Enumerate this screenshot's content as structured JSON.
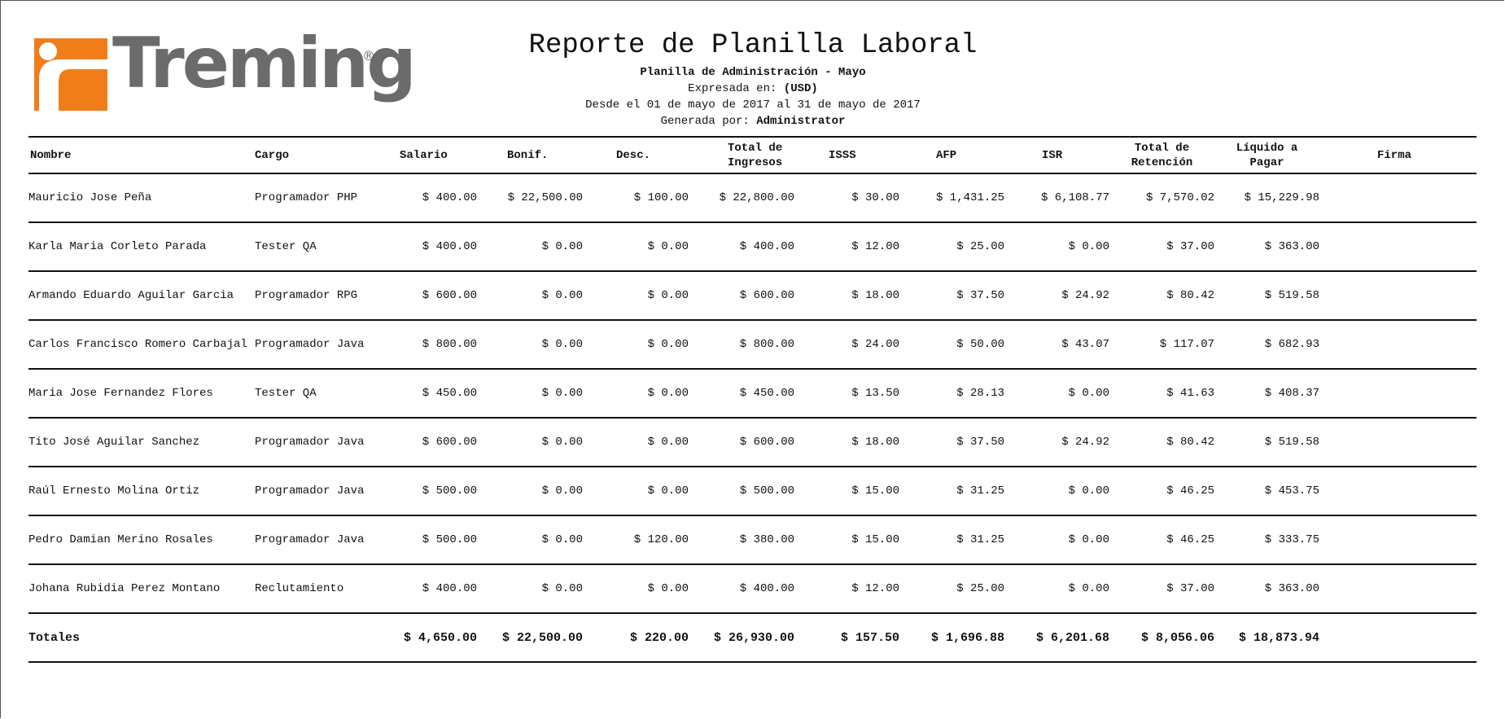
{
  "logo": {
    "word": "Treming",
    "reg": "®",
    "brand_orange": "#f07d1a",
    "brand_gray": "#6b6b6b"
  },
  "report": {
    "title": "Reporte de Planilla Laboral",
    "subtitle": "Planilla de Administración - Mayo",
    "currency_label": "Expresada en:",
    "currency_value": "(USD)",
    "date_range": "Desde el 01 de mayo de 2017 al 31 de mayo de 2017",
    "generated_label": "Generada por:",
    "generated_value": "Administrator"
  },
  "table": {
    "headers": {
      "nombre": "Nombre",
      "cargo": "Cargo",
      "salario": "Salario",
      "bonif": "Bonif.",
      "desc": "Desc.",
      "total_ingresos_1": "Total de",
      "total_ingresos_2": "Ingresos",
      "isss": "ISSS",
      "afp": "AFP",
      "isr": "ISR",
      "total_retencion_1": "Total de",
      "total_retencion_2": "Retención",
      "liquido_1": "Líquido a",
      "liquido_2": "Pagar",
      "firma": "Firma"
    },
    "rows": [
      {
        "nombre": "Mauricio Jose Peña",
        "cargo": "Programador PHP",
        "salario": "$ 400.00",
        "bonif": "$ 22,500.00",
        "desc": "$ 100.00",
        "ingresos": "$ 22,800.00",
        "isss": "$ 30.00",
        "afp": "$ 1,431.25",
        "isr": "$ 6,108.77",
        "retencion": "$ 7,570.02",
        "liquido": "$ 15,229.98"
      },
      {
        "nombre": "Karla Maria Corleto Parada",
        "cargo": "Tester QA",
        "salario": "$ 400.00",
        "bonif": "$ 0.00",
        "desc": "$ 0.00",
        "ingresos": "$ 400.00",
        "isss": "$ 12.00",
        "afp": "$ 25.00",
        "isr": "$ 0.00",
        "retencion": "$ 37.00",
        "liquido": "$ 363.00"
      },
      {
        "nombre": "Armando Eduardo Aguilar Garcia",
        "cargo": "Programador RPG",
        "salario": "$ 600.00",
        "bonif": "$ 0.00",
        "desc": "$ 0.00",
        "ingresos": "$ 600.00",
        "isss": "$ 18.00",
        "afp": "$ 37.50",
        "isr": "$ 24.92",
        "retencion": "$ 80.42",
        "liquido": "$ 519.58"
      },
      {
        "nombre": "Carlos Francisco Romero Carbajal",
        "cargo": "Programador Java",
        "salario": "$ 800.00",
        "bonif": "$ 0.00",
        "desc": "$ 0.00",
        "ingresos": "$ 800.00",
        "isss": "$ 24.00",
        "afp": "$ 50.00",
        "isr": "$ 43.07",
        "retencion": "$ 117.07",
        "liquido": "$ 682.93"
      },
      {
        "nombre": "Maria Jose Fernandez Flores",
        "cargo": "Tester QA",
        "salario": "$ 450.00",
        "bonif": "$ 0.00",
        "desc": "$ 0.00",
        "ingresos": "$ 450.00",
        "isss": "$ 13.50",
        "afp": "$ 28.13",
        "isr": "$ 0.00",
        "retencion": "$ 41.63",
        "liquido": "$ 408.37"
      },
      {
        "nombre": "Tito José Aguilar Sanchez",
        "cargo": "Programador Java",
        "salario": "$ 600.00",
        "bonif": "$ 0.00",
        "desc": "$ 0.00",
        "ingresos": "$ 600.00",
        "isss": "$ 18.00",
        "afp": "$ 37.50",
        "isr": "$ 24.92",
        "retencion": "$ 80.42",
        "liquido": "$ 519.58"
      },
      {
        "nombre": "Raúl Ernesto Molina Ortiz",
        "cargo": "Programador Java",
        "salario": "$ 500.00",
        "bonif": "$ 0.00",
        "desc": "$ 0.00",
        "ingresos": "$ 500.00",
        "isss": "$ 15.00",
        "afp": "$ 31.25",
        "isr": "$ 0.00",
        "retencion": "$ 46.25",
        "liquido": "$ 453.75"
      },
      {
        "nombre": "Pedro Damian Merino Rosales",
        "cargo": "Programador Java",
        "salario": "$ 500.00",
        "bonif": "$ 0.00",
        "desc": "$ 120.00",
        "ingresos": "$ 380.00",
        "isss": "$ 15.00",
        "afp": "$ 31.25",
        "isr": "$ 0.00",
        "retencion": "$ 46.25",
        "liquido": "$ 333.75"
      },
      {
        "nombre": "Johana Rubidia Perez Montano",
        "cargo": "Reclutamiento",
        "salario": "$ 400.00",
        "bonif": "$ 0.00",
        "desc": "$ 0.00",
        "ingresos": "$ 400.00",
        "isss": "$ 12.00",
        "afp": "$ 25.00",
        "isr": "$ 0.00",
        "retencion": "$ 37.00",
        "liquido": "$ 363.00"
      }
    ],
    "totals": {
      "label": "Totales",
      "salario": "$ 4,650.00",
      "bonif": "$ 22,500.00",
      "desc": "$ 220.00",
      "ingresos": "$ 26,930.00",
      "isss": "$ 157.50",
      "afp": "$ 1,696.88",
      "isr": "$ 6,201.68",
      "retencion": "$ 8,056.06",
      "liquido": "$ 18,873.94"
    }
  }
}
